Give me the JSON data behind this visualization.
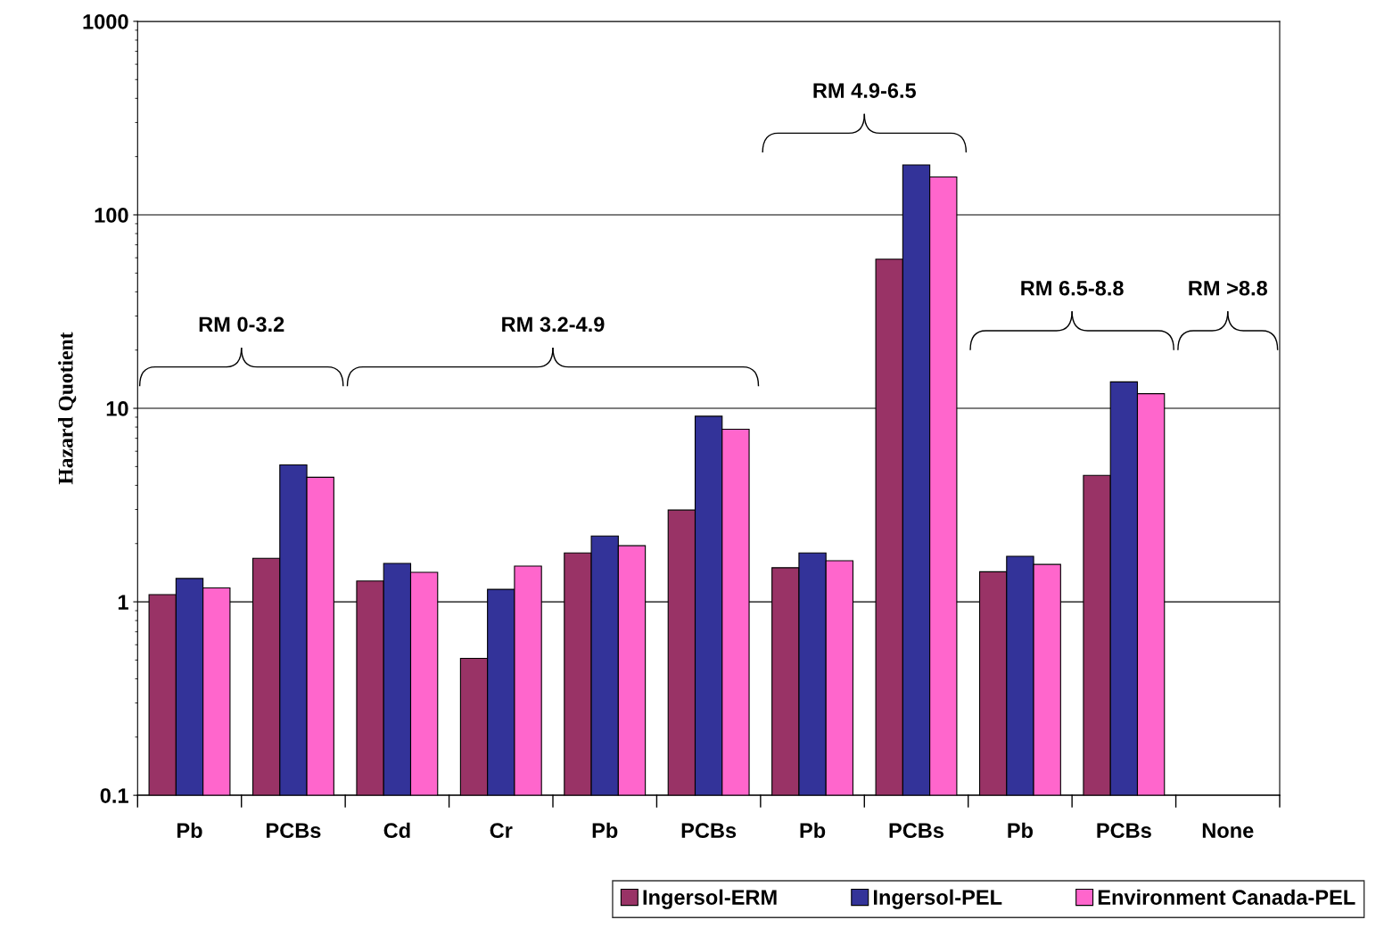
{
  "chart_data": {
    "type": "bar",
    "ylabel": "Hazard Quotient",
    "log": true,
    "ylim": [
      0.1,
      1000
    ],
    "yticks": [
      0.1,
      1,
      10,
      100,
      1000
    ],
    "grid": "y",
    "legend": "bottom right",
    "categories": [
      "Pb",
      "PCBs",
      "Cd",
      "Cr",
      "Pb",
      "PCBs",
      "Pb",
      "PCBs",
      "Pb",
      "PCBs",
      "None"
    ],
    "series": [
      {
        "name": "Ingersol-ERM",
        "color": "#993366",
        "values": [
          1.09,
          1.68,
          1.28,
          0.51,
          1.79,
          2.98,
          1.5,
          59,
          1.43,
          4.5,
          null
        ]
      },
      {
        "name": "Ingersol-PEL",
        "color": "#333399",
        "values": [
          1.32,
          5.1,
          1.58,
          1.16,
          2.19,
          9.1,
          1.79,
          181,
          1.72,
          13.7,
          null
        ]
      },
      {
        "name": "Environment Canada-PEL",
        "color": "#ff66cc",
        "values": [
          1.18,
          4.4,
          1.42,
          1.53,
          1.95,
          7.8,
          1.63,
          157,
          1.56,
          11.9,
          null
        ]
      }
    ],
    "annotations": [
      "RM 0-3.2",
      "RM 3.2-4.9",
      "RM 4.9-6.5",
      "RM 6.5-8.8",
      "RM >8.8"
    ]
  }
}
